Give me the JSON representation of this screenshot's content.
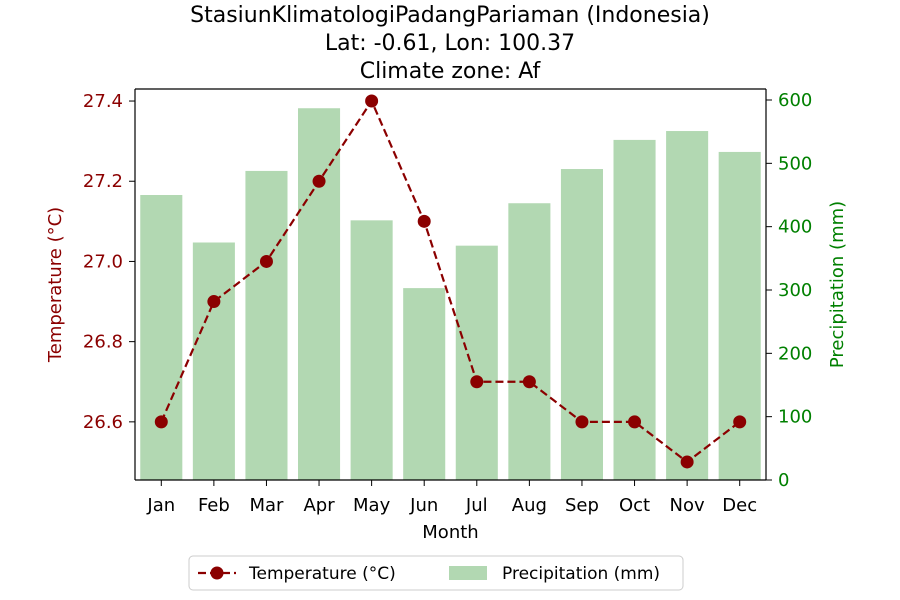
{
  "chart_data": {
    "type": "bar",
    "title_lines": [
      "StasiunKlimatologiPadangPariaman (Indonesia)",
      "Lat: -0.61, Lon: 100.37",
      "Climate zone: Af"
    ],
    "xlabel": "Month",
    "ylabel_left": "Temperature (°C)",
    "ylabel_right": "Precipitation (mm)",
    "categories": [
      "Jan",
      "Feb",
      "Mar",
      "Apr",
      "May",
      "Jun",
      "Jul",
      "Aug",
      "Sep",
      "Oct",
      "Nov",
      "Dec"
    ],
    "temperature": {
      "name": "Temperature (°C)",
      "color": "#8b0000",
      "values": [
        26.6,
        26.9,
        27.0,
        27.2,
        27.4,
        27.1,
        26.7,
        26.7,
        26.6,
        26.6,
        26.5,
        26.6
      ]
    },
    "precipitation": {
      "name": "Precipitation (mm)",
      "color": "#b2d8b2",
      "values": [
        450,
        375,
        488,
        587,
        410,
        303,
        370,
        437,
        491,
        537,
        551,
        518
      ]
    },
    "ylim_left": [
      26.455,
      27.43
    ],
    "ylim_right": [
      0,
      600
    ],
    "yticks_left": [
      "26.6",
      "26.8",
      "27.0",
      "27.2",
      "27.4"
    ],
    "yticks_right": [
      "0",
      "100",
      "200",
      "300",
      "400",
      "500",
      "600"
    ],
    "left_axis_color": "#8b0000",
    "right_axis_color": "#008000",
    "legend_position": "bottom-center",
    "grid": false
  }
}
